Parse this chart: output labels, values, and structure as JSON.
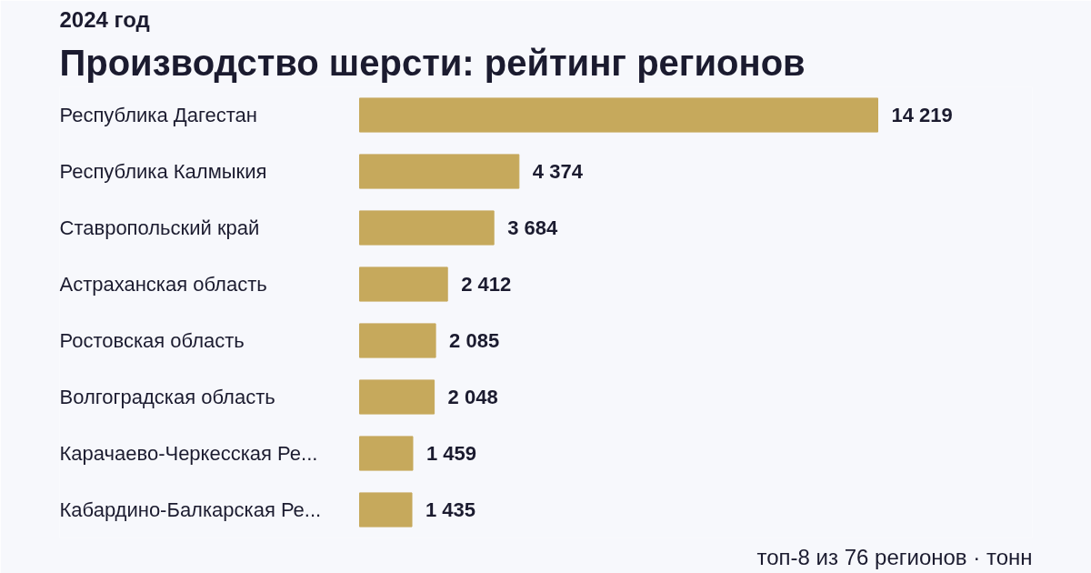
{
  "chart_data": {
    "type": "bar",
    "orientation": "horizontal",
    "title": "Производство шерсти: рейтинг регионов",
    "subtitle": "2024 год",
    "categories": [
      "Республика Дагестан",
      "Республика Калмыкия",
      "Ставропольский край",
      "Астраханская область",
      "Ростовская область",
      "Волгоградская область",
      "Карачаево-Черкесская Ре...",
      "Кабардино-Балкарская Ре..."
    ],
    "values": [
      14219,
      4374,
      3684,
      2412,
      2085,
      2048,
      1459,
      1435
    ],
    "value_labels": [
      "14 219",
      "4 374",
      "3 684",
      "2 412",
      "2 085",
      "2 048",
      "1 459",
      "1 435"
    ],
    "color": "#c6a95c",
    "annotations": [
      "топ-8 из 76 регионов · тонн"
    ],
    "grid": false
  }
}
